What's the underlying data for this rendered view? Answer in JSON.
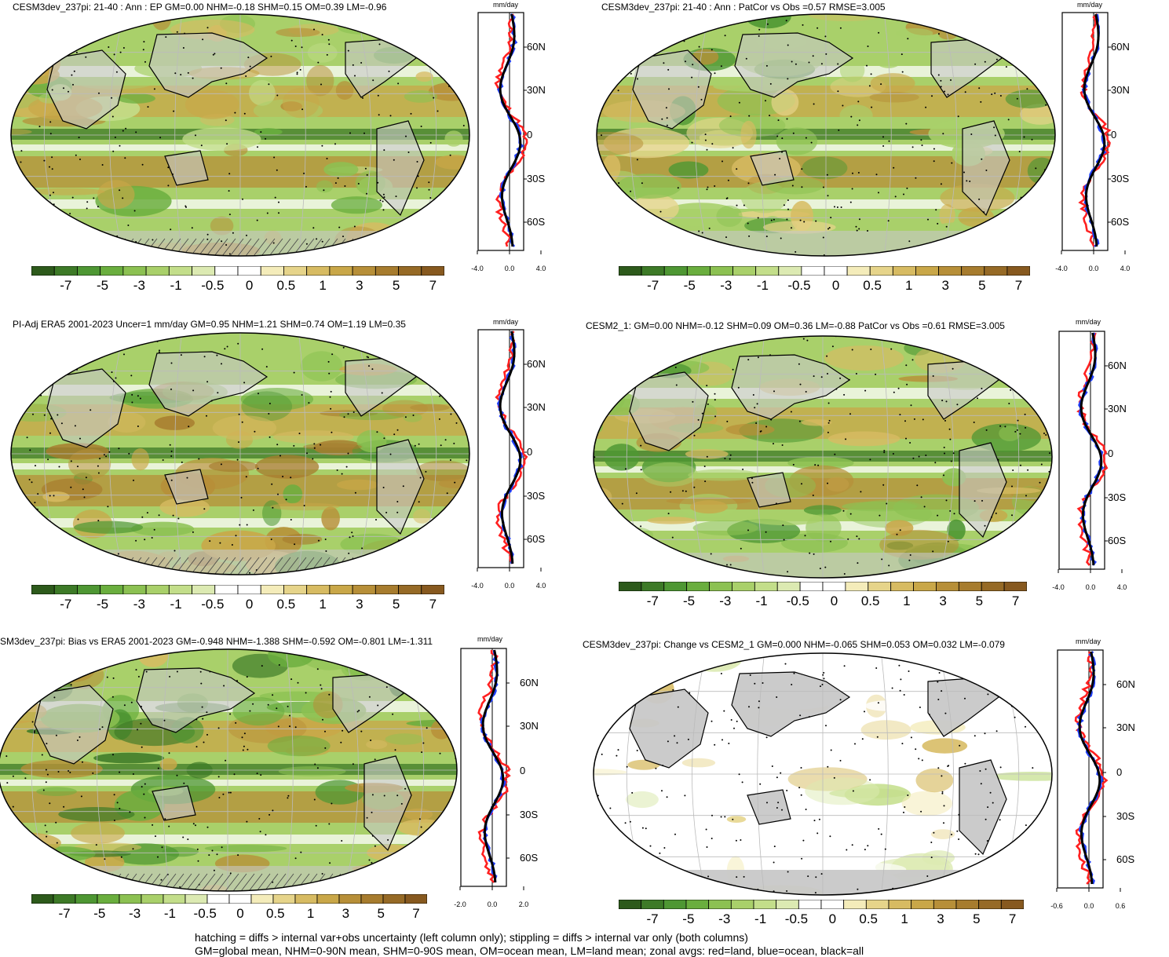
{
  "unit_label": "mm/day",
  "colorbar": {
    "labels": [
      "-7",
      "-5",
      "-3",
      "-1",
      "-0.5",
      "0",
      "0.5",
      "1",
      "3",
      "5",
      "7"
    ],
    "colors": [
      "#2d5a1b",
      "#3d7a27",
      "#4e9733",
      "#6aae3e",
      "#8cc152",
      "#a9d06a",
      "#c3de8a",
      "#dceab2",
      "#ffffff",
      "#ffffff",
      "#f4ecba",
      "#e6d48a",
      "#d7bb62",
      "#c9a748",
      "#b78f38",
      "#a77c2e",
      "#966a26",
      "#87591f"
    ]
  },
  "panels": [
    {
      "title": "CESM3dev_237pi: 21-40 : Ann : EP GM=0.00 NHM=-0.18 SHM=0.15 OM=0.39 LM=-0.96",
      "zonal_ticks": {
        "x": [
          "-4.0",
          "0.0",
          "4.0"
        ],
        "y": [
          "60N",
          "30N",
          "0",
          "30S",
          "60S"
        ]
      }
    },
    {
      "title": "CESM3dev_237pi: 21-40 : Ann : PatCor vs Obs =0.57 RMSE=3.005",
      "zonal_ticks": {
        "x": [
          "-4.0",
          "0.0",
          "4.0"
        ],
        "y": [
          "60N",
          "30N",
          "0",
          "30S",
          "60S"
        ]
      }
    },
    {
      "title": "PI-Adj ERA5 2001-2023 Uncer=1 mm/day GM=0.95 NHM=1.21 SHM=0.74 OM=1.19 LM=0.35",
      "zonal_ticks": {
        "x": [
          "-4.0",
          "0.0",
          "4.0"
        ],
        "y": [
          "60N",
          "30N",
          "0",
          "30S",
          "60S"
        ]
      }
    },
    {
      "title": "CESM2_1: GM=0.00 NHM=-0.12 SHM=0.09 OM=0.36 LM=-0.88 PatCor vs Obs =0.61 RMSE=3.005",
      "zonal_ticks": {
        "x": [
          "-4.0",
          "0.0",
          "4.0"
        ],
        "y": [
          "60N",
          "30N",
          "0",
          "30S",
          "60S"
        ]
      }
    },
    {
      "title": "SM3dev_237pi: Bias vs ERA5 2001-2023 GM=-0.948 NHM=-1.388 SHM=-0.592 OM=-0.801 LM=-1.311",
      "zonal_ticks": {
        "x": [
          "-2.0",
          "0.0",
          "2.0"
        ],
        "y": [
          "60N",
          "30N",
          "0",
          "30S",
          "60S"
        ]
      }
    },
    {
      "title": "CESM3dev_237pi: Change vs CESM2_1 GM=0.000 NHM=-0.065 SHM=0.053 OM=0.032 LM=-0.079",
      "zonal_ticks": {
        "x": [
          "-0.6",
          "0.0",
          "0.6"
        ],
        "y": [
          "60N",
          "30N",
          "0",
          "30S",
          "60S"
        ]
      }
    }
  ],
  "footer": {
    "line1": "hatching = diffs > internal var+obs uncertainty (left column only); stippling = diffs > internal var only (both columns)",
    "line2": "GM=global mean, NHM=0-90N mean, SHM=0-90S mean, OM=ocean mean, LM=land mean; zonal avgs: red=land, blue=ocean, black=all"
  }
}
